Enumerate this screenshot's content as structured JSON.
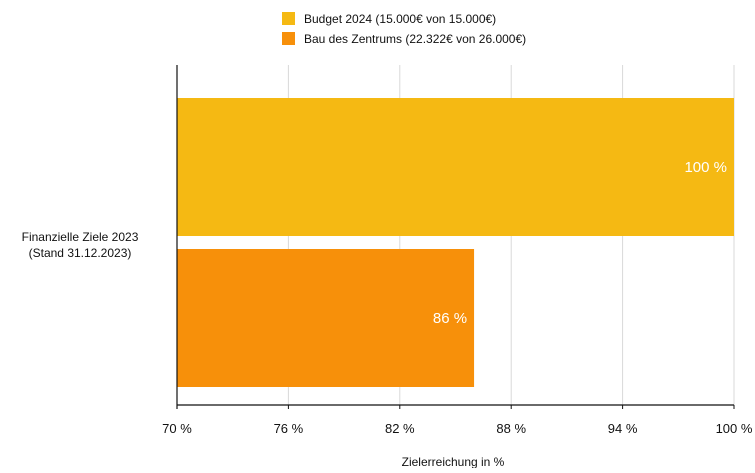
{
  "chart_data": {
    "type": "bar",
    "orientation": "horizontal",
    "categories": [
      "Finanzielle Ziele 2023 (Stand 31.12.2023)"
    ],
    "category_label_lines": [
      "Finanzielle Ziele 2023",
      "(Stand 31.12.2023)"
    ],
    "series": [
      {
        "name": "Budget 2024 (15.000€ von 15.000€)",
        "values": [
          100
        ],
        "color": "#F5B913",
        "label": "100 %"
      },
      {
        "name": "Bau des Zentrums (22.322€ von 26.000€)",
        "values": [
          86
        ],
        "color": "#F7900A",
        "label": "86 %"
      }
    ],
    "xlabel": "Zielerreichung in %",
    "ylabel": "",
    "xlim": [
      70,
      100
    ],
    "xticks": [
      70,
      76,
      82,
      88,
      94,
      100
    ],
    "xtick_labels": [
      "70 %",
      "76 %",
      "82 %",
      "88 %",
      "94 %",
      "100 %"
    ],
    "grid": "vertical",
    "legend_position": "top"
  }
}
